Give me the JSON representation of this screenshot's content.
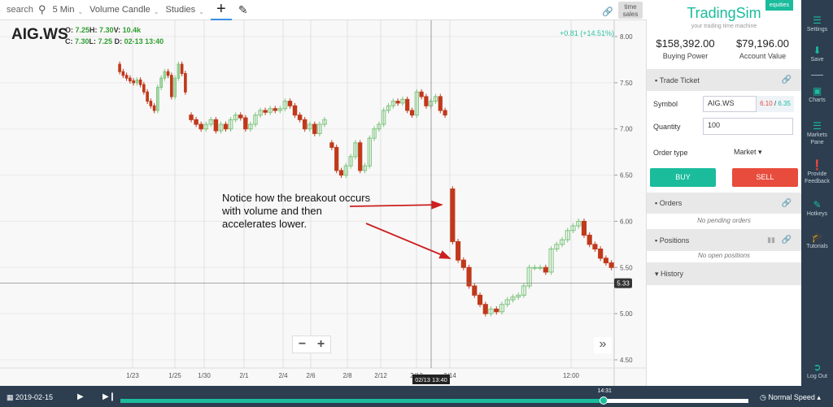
{
  "toolbar": {
    "search_placeholder": "search",
    "interval": "5 Min",
    "chart_type": "Volume Candle",
    "studies": "Studies",
    "crosshair_icon": "plus",
    "draw_icon": "pencil"
  },
  "chart": {
    "symbol": "AIG.WS",
    "o": "7.25",
    "h": "7.30",
    "v": "10.4k",
    "c": "7.30",
    "l": "7.25",
    "d": "02-13 13:40",
    "change": "+0.81 (+14.51%)",
    "time_sales": "time sales",
    "current_price": "5.33",
    "crosshair_time": "02/13 13:40",
    "annotation": "Notice how the breakout occurs with volume and then accelerates lower.",
    "y_ticks": [
      "8.00",
      "7.50",
      "7.00",
      "6.50",
      "6.00",
      "5.50",
      "5.00",
      "4.50"
    ],
    "x_ticks": [
      "1/23",
      "1/25",
      "1/30",
      "2/1",
      "2/4",
      "2/6",
      "2/8",
      "2/12",
      "2/13",
      "2/14",
      "12:00"
    ],
    "colors": {
      "up": "#7dc47d",
      "down": "#c0391b",
      "accent": "#1abc9c",
      "annotation_arrow": "#cc1f1f"
    }
  },
  "chart_data": {
    "type": "candlestick",
    "ylim": [
      4.4,
      8.05
    ],
    "segments": [
      {
        "open": 7.7,
        "closes": [
          7.62,
          7.58,
          7.55,
          7.52,
          7.5,
          7.53,
          7.48,
          7.4,
          7.3,
          7.25,
          7.2,
          7.45,
          7.55,
          7.62,
          7.58,
          7.35,
          7.55,
          7.7,
          7.6,
          7.4
        ]
      },
      {
        "open": 7.15,
        "closes": [
          7.1,
          7.05,
          7.0,
          7.05,
          7.1,
          6.98,
          7.05,
          7.0,
          7.1,
          7.15,
          7.12,
          7.0,
          7.05,
          7.15,
          7.2,
          7.18,
          7.22,
          7.2,
          7.22,
          7.3,
          7.25,
          7.15,
          7.1,
          7.0,
          7.05,
          6.95,
          7.05,
          7.1
        ]
      },
      {
        "open": 6.85,
        "closes": [
          6.8,
          6.55,
          6.5,
          6.6,
          6.7,
          6.85,
          6.55,
          6.6,
          6.9,
          7.0,
          7.05,
          7.2,
          7.25,
          7.3,
          7.28,
          7.32,
          7.2,
          7.15,
          7.4,
          7.35,
          7.25,
          7.3,
          7.35,
          7.2,
          7.15
        ]
      },
      {
        "open": 6.35,
        "closes": [
          5.78,
          5.58,
          5.5,
          5.3,
          5.2,
          5.1,
          5.0,
          5.05,
          5.02,
          5.1,
          5.15,
          5.18,
          5.2,
          5.3,
          5.5,
          5.5,
          5.5,
          5.45,
          5.7,
          5.75,
          5.8,
          5.9,
          5.95,
          6.0,
          5.85,
          5.75,
          5.7,
          5.6,
          5.55,
          5.5
        ]
      }
    ]
  },
  "panel": {
    "logo": "TradingSim",
    "tagline": "your trading time machine",
    "badge": "equities",
    "buying_power": "$158,392.00",
    "buying_power_label": "Buying Power",
    "account_value": "$79,196.00",
    "account_value_label": "Account Value",
    "trade_ticket": "Trade Ticket",
    "symbol_label": "Symbol",
    "symbol_value": "AIG.WS",
    "bid": "6.10",
    "ask": "6.35",
    "quantity_label": "Quantity",
    "quantity_value": "100",
    "order_type_label": "Order type",
    "order_type": "Market",
    "buy": "BUY",
    "sell": "SELL",
    "orders": "Orders",
    "no_orders": "No pending orders",
    "positions": "Positions",
    "no_positions": "No open positions",
    "history": "History"
  },
  "sidebar": [
    {
      "label": "Settings",
      "icon": "menu-icon"
    },
    {
      "label": "Save",
      "icon": "download-icon"
    },
    {
      "label": "Charts",
      "icon": "square-icon"
    },
    {
      "label": "Markets Pane",
      "icon": "list-icon"
    },
    {
      "label": "Provide Feedback",
      "icon": "info-icon"
    },
    {
      "label": "Hotkeys",
      "icon": "edit-icon"
    },
    {
      "label": "Tutorials",
      "icon": "graduation-icon"
    },
    {
      "label": "Log Out",
      "icon": "logout-icon"
    }
  ],
  "playback": {
    "date": "2019-02-15",
    "time": "14:31",
    "progress": 0.77,
    "speed": "Normal Speed"
  }
}
